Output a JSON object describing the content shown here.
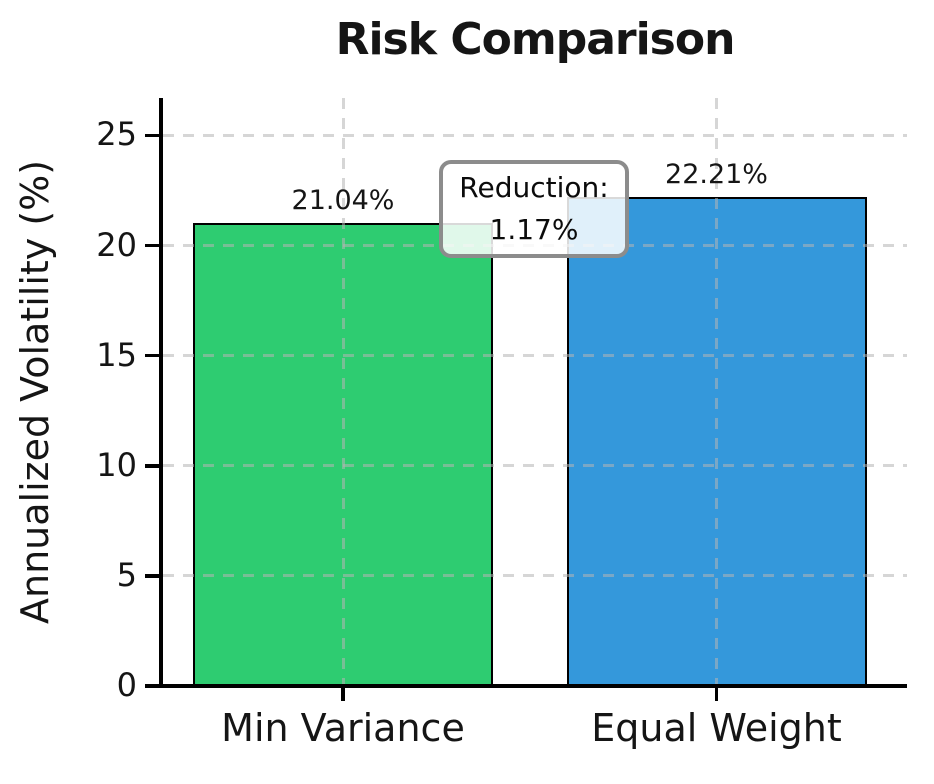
{
  "chart_data": {
    "type": "bar",
    "title": "Risk Comparison",
    "ylabel": "Annualized Volatility (%)",
    "xlabel": "",
    "categories": [
      "Min Variance",
      "Equal Weight"
    ],
    "values": [
      21.04,
      22.21
    ],
    "bar_labels": [
      "21.04%",
      "22.21%"
    ],
    "bar_colors": [
      "#2ecc71",
      "#3498db"
    ],
    "bar_edge_color": "#000000",
    "yticks": [
      0,
      5,
      10,
      15,
      20,
      25
    ],
    "ylim": [
      0,
      26.7
    ],
    "grid": "dashed light-gray horizontal and vertical gridlines",
    "legend": "none",
    "annotation": {
      "line1": "Reduction:",
      "line2": "1.17%"
    }
  }
}
